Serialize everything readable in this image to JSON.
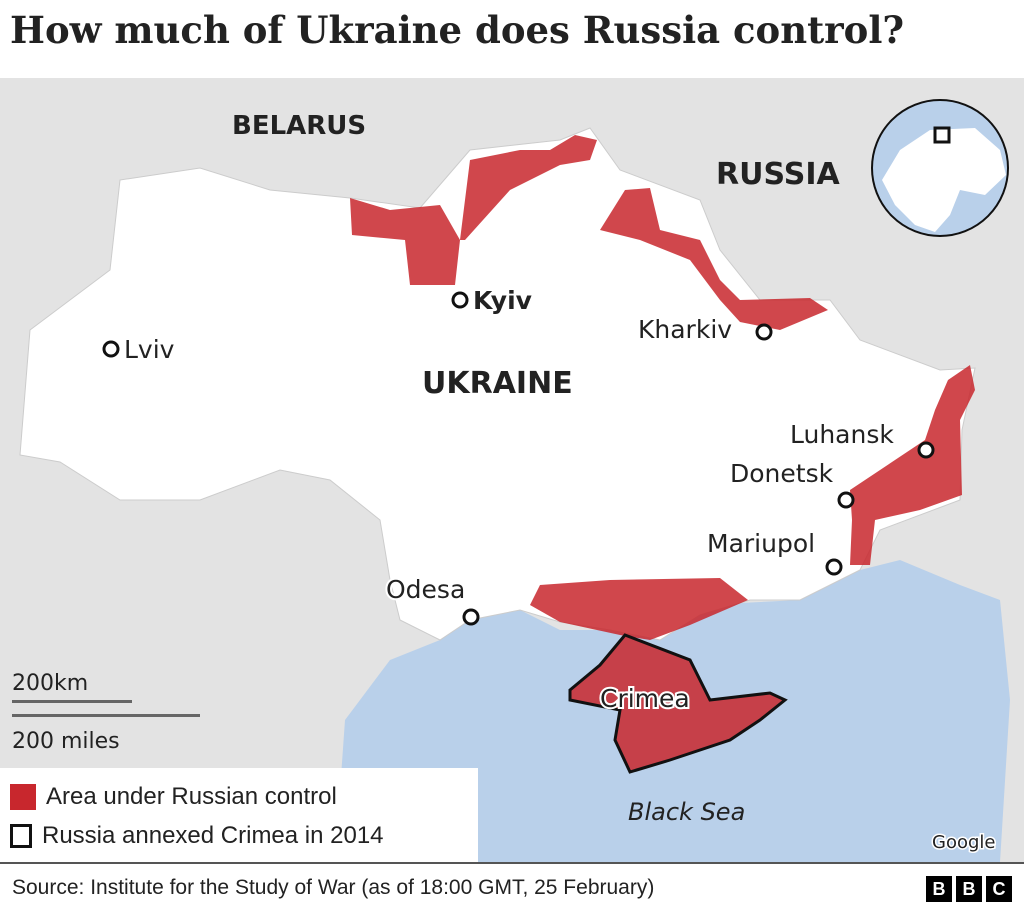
{
  "title": "How much of Ukraine does Russia control?",
  "map": {
    "countries": {
      "belarus": "BELARUS",
      "russia": "RUSSIA",
      "ukraine": "UKRAINE"
    },
    "cities": [
      "Kyiv",
      "Lviv",
      "Kharkiv",
      "Luhansk",
      "Donetsk",
      "Mariupol",
      "Odesa"
    ],
    "region": "Crimea",
    "sea": "Black Sea",
    "scale": {
      "km": "200km",
      "miles": "200 miles"
    },
    "attribution": "Google",
    "colors": {
      "land": "#e3e3e3",
      "ukraine": "#ffffff",
      "sea": "#b9d0ea",
      "russian_control": "#c8272d"
    }
  },
  "legend": {
    "items": [
      {
        "label": "Area under Russian control",
        "color": "#c8272d"
      },
      {
        "label": "Russia annexed Crimea in 2014",
        "color": "#ffffff"
      }
    ]
  },
  "footer": {
    "source": "Source: Institute for the Study of War (as of 18:00 GMT, 25 February)",
    "logo": [
      "B",
      "B",
      "C"
    ]
  }
}
